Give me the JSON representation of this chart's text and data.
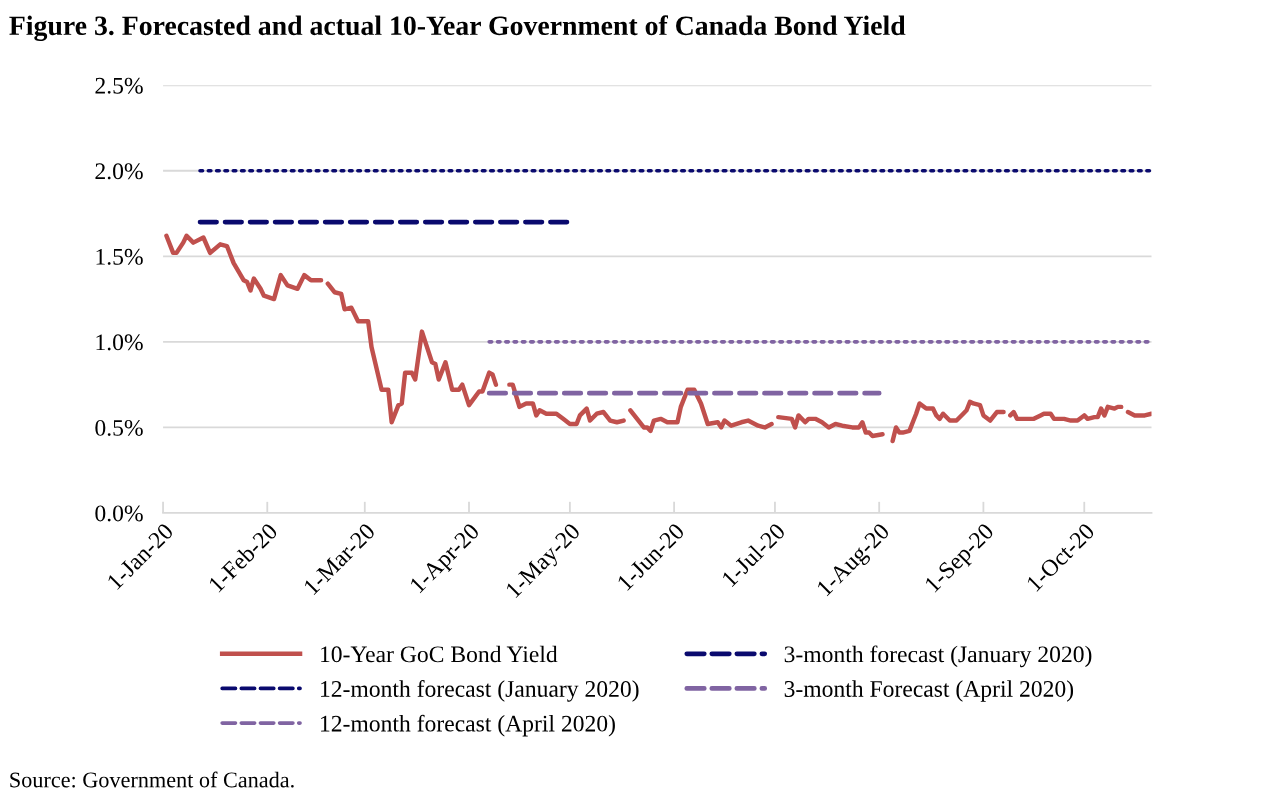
{
  "chart_data": {
    "type": "line",
    "title": "Figure 3. Forecasted and actual 10-Year Government of Canada Bond Yield",
    "xlim": [
      "2020-01-01",
      "2020-10-21"
    ],
    "xticks": [
      {
        "value": "2020-01-01",
        "label": "1-Jan-20"
      },
      {
        "value": "2020-02-01",
        "label": "1-Feb-20"
      },
      {
        "value": "2020-03-01",
        "label": "1-Mar-20"
      },
      {
        "value": "2020-04-01",
        "label": "1-Apr-20"
      },
      {
        "value": "2020-05-01",
        "label": "1-May-20"
      },
      {
        "value": "2020-06-01",
        "label": "1-Jun-20"
      },
      {
        "value": "2020-07-01",
        "label": "1-Jul-20"
      },
      {
        "value": "2020-08-01",
        "label": "1-Aug-20"
      },
      {
        "value": "2020-09-01",
        "label": "1-Sep-20"
      },
      {
        "value": "2020-10-01",
        "label": "1-Oct-20"
      }
    ],
    "ylim": [
      0,
      2.5
    ],
    "yticks": [
      {
        "value": 0,
        "label": "0.0%"
      },
      {
        "value": 0.5,
        "label": "0.5%"
      },
      {
        "value": 1.0,
        "label": "1.0%"
      },
      {
        "value": 1.5,
        "label": "1.5%"
      },
      {
        "value": 2.0,
        "label": "2.0%"
      },
      {
        "value": 2.5,
        "label": "2.5%"
      }
    ],
    "grid": "y",
    "legend": "bottom",
    "series": [
      {
        "name": "10-Year GoC Bond Yield",
        "color": "#c0504d",
        "line_style": "solid",
        "x": [
          "2020-01-02",
          "2020-01-04",
          "2020-01-05",
          "2020-01-07",
          "2020-01-08",
          "2020-01-10",
          "2020-01-13",
          "2020-01-15",
          "2020-01-18",
          "2020-01-20",
          "2020-01-22",
          "2020-01-25",
          "2020-01-26",
          "2020-01-27",
          "2020-01-28",
          "2020-01-30",
          "2020-01-31",
          "2020-02-03",
          "2020-02-05",
          "2020-02-07",
          "2020-02-10",
          "2020-02-12",
          "2020-02-14",
          "2020-02-17",
          "2020-02-18",
          "2020-02-19",
          "2020-02-21",
          "2020-02-23",
          "2020-02-24",
          "2020-02-26",
          "2020-02-28",
          "2020-03-02",
          "2020-03-03",
          "2020-03-06",
          "2020-03-08",
          "2020-03-09",
          "2020-03-11",
          "2020-03-12",
          "2020-03-13",
          "2020-03-15",
          "2020-03-16",
          "2020-03-18",
          "2020-03-21",
          "2020-03-22",
          "2020-03-23",
          "2020-03-25",
          "2020-03-27",
          "2020-03-29",
          "2020-03-30",
          "2020-04-01",
          "2020-04-04",
          "2020-04-05",
          "2020-04-07",
          "2020-04-08",
          "2020-04-09",
          "2020-04-11",
          "2020-04-13",
          "2020-04-14",
          "2020-04-16",
          "2020-04-18",
          "2020-04-20",
          "2020-04-21",
          "2020-04-22",
          "2020-04-24",
          "2020-04-27",
          "2020-04-29",
          "2020-05-01",
          "2020-05-03",
          "2020-05-04",
          "2020-05-06",
          "2020-05-07",
          "2020-05-09",
          "2020-05-11",
          "2020-05-13",
          "2020-05-15",
          "2020-05-17",
          "2020-05-18",
          "2020-05-19",
          "2020-05-21",
          "2020-05-23",
          "2020-05-24",
          "2020-05-25",
          "2020-05-26",
          "2020-05-28",
          "2020-05-30",
          "2020-06-02",
          "2020-06-03",
          "2020-06-05",
          "2020-06-07",
          "2020-06-09",
          "2020-06-11",
          "2020-06-14",
          "2020-06-15",
          "2020-06-16",
          "2020-06-18",
          "2020-06-21",
          "2020-06-23",
          "2020-06-26",
          "2020-06-28",
          "2020-06-30",
          "2020-07-01",
          "2020-07-02",
          "2020-07-06",
          "2020-07-07",
          "2020-07-08",
          "2020-07-10",
          "2020-07-11",
          "2020-07-13",
          "2020-07-15",
          "2020-07-17",
          "2020-07-19",
          "2020-07-21",
          "2020-07-24",
          "2020-07-26",
          "2020-07-27",
          "2020-07-28",
          "2020-07-29",
          "2020-07-30",
          "2020-08-02",
          "2020-08-04",
          "2020-08-05",
          "2020-08-06",
          "2020-08-07",
          "2020-08-08",
          "2020-08-10",
          "2020-08-11",
          "2020-08-12",
          "2020-08-13",
          "2020-08-15",
          "2020-08-17",
          "2020-08-18",
          "2020-08-19",
          "2020-08-20",
          "2020-08-22",
          "2020-08-24",
          "2020-08-26",
          "2020-08-27",
          "2020-08-28",
          "2020-08-29",
          "2020-08-31",
          "2020-09-01",
          "2020-09-03",
          "2020-09-05",
          "2020-09-07",
          "2020-09-08",
          "2020-09-09",
          "2020-09-10",
          "2020-09-11",
          "2020-09-16",
          "2020-09-18",
          "2020-09-19",
          "2020-09-21",
          "2020-09-22",
          "2020-09-25",
          "2020-09-27",
          "2020-09-29",
          "2020-10-01",
          "2020-10-02",
          "2020-10-04",
          "2020-10-05",
          "2020-10-06",
          "2020-10-07",
          "2020-10-08",
          "2020-10-10",
          "2020-10-11",
          "2020-10-12",
          "2020-10-13",
          "2020-10-14",
          "2020-10-16",
          "2020-10-19",
          "2020-10-21"
        ],
        "values": [
          1.62,
          1.52,
          1.52,
          1.58,
          1.62,
          1.58,
          1.61,
          1.52,
          1.57,
          1.56,
          1.46,
          1.36,
          1.35,
          1.3,
          1.37,
          1.31,
          1.27,
          1.25,
          1.39,
          1.33,
          1.31,
          1.39,
          1.36,
          1.36,
          null,
          1.34,
          1.29,
          1.28,
          1.19,
          1.2,
          1.12,
          1.12,
          0.97,
          0.72,
          0.72,
          0.53,
          0.63,
          0.64,
          0.82,
          0.82,
          0.78,
          1.06,
          0.88,
          0.87,
          0.78,
          0.88,
          0.72,
          0.72,
          0.75,
          0.63,
          0.71,
          0.71,
          0.82,
          0.81,
          0.75,
          null,
          0.75,
          0.75,
          0.62,
          0.64,
          0.64,
          0.57,
          0.6,
          0.58,
          0.58,
          0.55,
          0.52,
          0.52,
          0.57,
          0.61,
          0.54,
          0.58,
          0.59,
          0.54,
          0.53,
          0.54,
          null,
          0.6,
          0.55,
          0.5,
          0.5,
          0.48,
          0.54,
          0.55,
          0.53,
          0.53,
          0.62,
          0.72,
          0.72,
          0.64,
          0.52,
          0.53,
          0.5,
          0.54,
          0.51,
          0.53,
          0.54,
          0.51,
          0.5,
          0.52,
          null,
          0.56,
          0.55,
          0.5,
          0.57,
          0.53,
          0.55,
          0.55,
          0.53,
          0.5,
          0.52,
          0.51,
          0.5,
          0.5,
          0.53,
          0.47,
          0.47,
          0.45,
          0.46,
          null,
          0.42,
          0.5,
          0.47,
          0.47,
          0.48,
          0.53,
          0.58,
          0.64,
          0.61,
          0.61,
          0.57,
          0.55,
          0.58,
          0.54,
          0.54,
          0.58,
          0.6,
          0.65,
          0.64,
          0.63,
          0.57,
          0.54,
          0.59,
          0.59,
          null,
          0.57,
          0.59,
          0.55,
          0.55,
          0.57,
          0.58,
          0.58,
          0.55,
          0.55,
          0.54,
          0.54,
          0.57,
          0.55,
          0.56,
          0.56,
          0.61,
          0.57,
          0.62,
          0.61,
          0.62,
          0.62,
          null,
          0.59,
          0.57,
          0.57,
          0.58
        ]
      },
      {
        "name": "3-month forecast (January 2020)",
        "color": "#0a0a6e",
        "line_style": "dashed",
        "x": [
          "2020-01-12",
          "2020-05-01"
        ],
        "values": [
          1.7,
          1.7
        ]
      },
      {
        "name": "12-month forecast (January 2020)",
        "color": "#0a0a6e",
        "line_style": "dotted",
        "x": [
          "2020-01-12",
          "2020-10-21"
        ],
        "values": [
          2.0,
          2.0
        ]
      },
      {
        "name": "3-month Forecast (April 2020)",
        "color": "#8064a2",
        "line_style": "dashed",
        "x": [
          "2020-04-07",
          "2020-08-01"
        ],
        "values": [
          0.7,
          0.7
        ]
      },
      {
        "name": "12-month forecast (April 2020)",
        "color": "#8064a2",
        "line_style": "dotted",
        "x": [
          "2020-04-07",
          "2020-10-21"
        ],
        "values": [
          1.0,
          1.0
        ]
      }
    ],
    "annotations": [
      "Source: Government of Canada."
    ]
  }
}
